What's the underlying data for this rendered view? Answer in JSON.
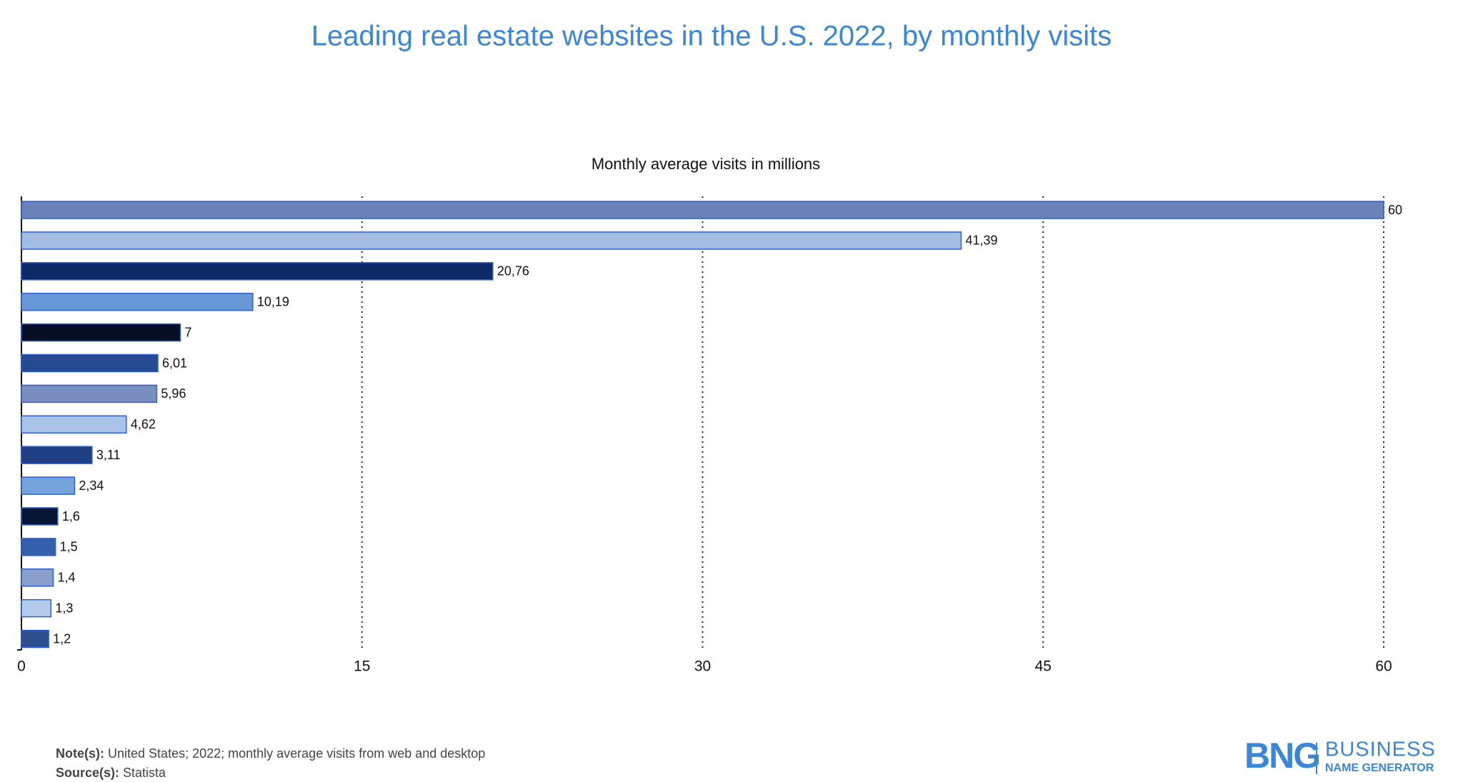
{
  "chart_data": {
    "type": "barh",
    "title": "Leading real estate websites in the U.S. 2022, by monthly visits",
    "xlabel": "Monthly average visits in millions",
    "categories": [
      null,
      null,
      null,
      null,
      null,
      null,
      null,
      null,
      null,
      null,
      null,
      null,
      null,
      null,
      null
    ],
    "values": [
      60,
      41.39,
      20.76,
      10.19,
      7,
      6.01,
      5.96,
      4.62,
      3.11,
      2.34,
      1.6,
      1.5,
      1.4,
      1.3,
      1.2
    ],
    "value_labels": [
      "60",
      "41,39",
      "20,76",
      "10,19",
      "7",
      "6,01",
      "5,96",
      "4,62",
      "3,11",
      "2,34",
      "1,6",
      "1,5",
      "1,4",
      "1,3",
      "1,2"
    ],
    "colors": [
      "#6a82b8",
      "#a3bde3",
      "#0d2a66",
      "#6899d6",
      "#050e22",
      "#254a91",
      "#7a8fbf",
      "#aac4e8",
      "#1f3f82",
      "#75a3dc",
      "#071634",
      "#3460ab",
      "#8aa0cc",
      "#b3cbeb",
      "#2c4e8e"
    ],
    "xlim": [
      0,
      60
    ],
    "xticks": [
      0,
      15,
      30,
      45,
      60
    ],
    "grid": true
  },
  "notes": [
    {
      "label": "Note(s):",
      "text": "United States; 2022; monthly average visits from web and desktop"
    },
    {
      "label": "Source(s):",
      "text": "Statista"
    }
  ],
  "logo": {
    "mark": "BNG",
    "line1": "BUSINESS",
    "line2": "NAME GENERATOR"
  }
}
